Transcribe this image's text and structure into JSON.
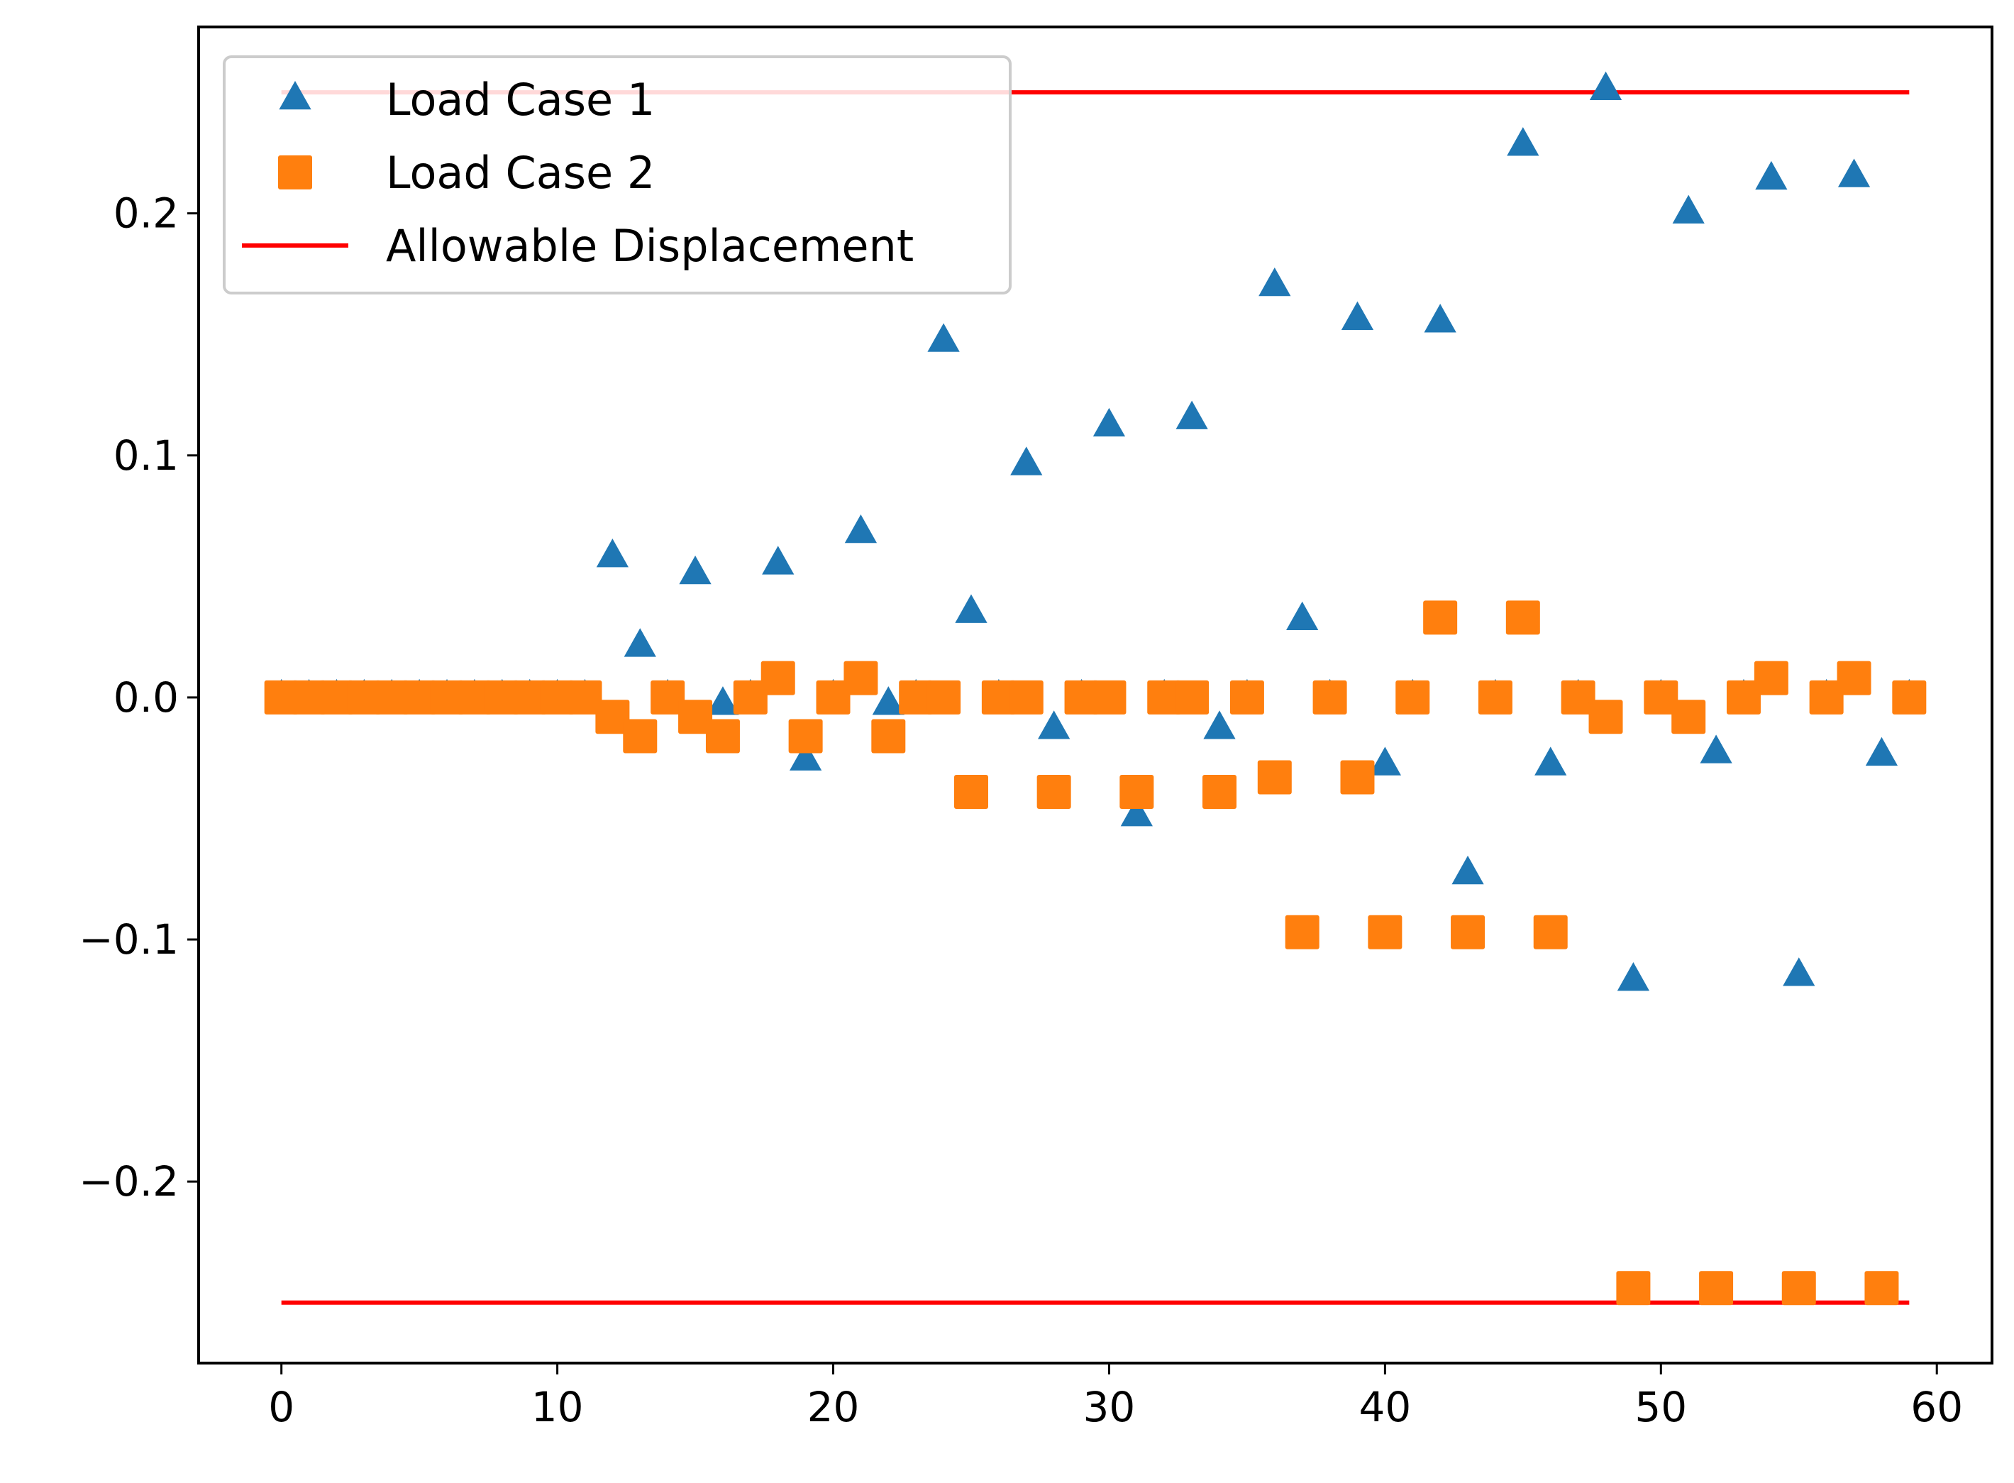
{
  "chart_data": {
    "type": "scatter",
    "title": "",
    "xlabel": "",
    "ylabel": "",
    "xlim": [
      -3,
      62
    ],
    "ylim": [
      -0.275,
      0.277
    ],
    "xticks": [
      0,
      10,
      20,
      30,
      40,
      50,
      60
    ],
    "yticks": [
      -0.2,
      -0.1,
      0.0,
      0.1,
      0.2
    ],
    "xtick_labels": [
      "0",
      "10",
      "20",
      "30",
      "40",
      "50",
      "60"
    ],
    "ytick_labels": [
      "−0.2",
      "−0.1",
      "0.0",
      "0.1",
      "0.2"
    ],
    "legend_position": "top-left",
    "series": [
      {
        "name": "Load Case 1",
        "marker": "triangle",
        "color": "#1f77b4",
        "x": [
          0,
          1,
          2,
          3,
          4,
          5,
          6,
          7,
          8,
          9,
          10,
          11,
          12,
          13,
          14,
          15,
          16,
          17,
          18,
          19,
          20,
          21,
          22,
          23,
          24,
          25,
          26,
          27,
          28,
          29,
          30,
          31,
          32,
          33,
          34,
          35,
          36,
          37,
          38,
          39,
          40,
          41,
          42,
          43,
          44,
          45,
          46,
          47,
          48,
          49,
          50,
          51,
          52,
          53,
          54,
          55,
          56,
          57,
          58,
          59
        ],
        "y": [
          0,
          0,
          0,
          0,
          0,
          0,
          0,
          0,
          0,
          0,
          0,
          0,
          0.058,
          0.021,
          0,
          0.051,
          -0.003,
          0,
          0.055,
          -0.026,
          0,
          0.068,
          -0.003,
          0,
          0.147,
          0.035,
          0,
          0.096,
          -0.013,
          0,
          0.112,
          -0.049,
          0,
          0.115,
          -0.013,
          0,
          0.17,
          0.032,
          0,
          0.156,
          -0.028,
          0,
          0.155,
          -0.073,
          0,
          0.228,
          -0.028,
          0,
          0.251,
          -0.117,
          0,
          0.2,
          -0.023,
          0,
          0.214,
          -0.115,
          0,
          0.215,
          -0.024,
          0
        ]
      },
      {
        "name": "Load Case 2",
        "marker": "square",
        "color": "#ff7f0e",
        "x": [
          0,
          1,
          2,
          3,
          4,
          5,
          6,
          7,
          8,
          9,
          10,
          11,
          12,
          13,
          14,
          15,
          16,
          17,
          18,
          19,
          20,
          21,
          22,
          23,
          24,
          25,
          26,
          27,
          28,
          29,
          30,
          31,
          32,
          33,
          34,
          35,
          36,
          37,
          38,
          39,
          40,
          41,
          42,
          43,
          44,
          45,
          46,
          47,
          48,
          49,
          50,
          51,
          52,
          53,
          54,
          55,
          56,
          57,
          58,
          59
        ],
        "y": [
          0,
          0,
          0,
          0,
          0,
          0,
          0,
          0,
          0,
          0,
          0,
          0,
          -0.008,
          -0.016,
          0,
          -0.008,
          -0.016,
          0,
          0.008,
          -0.016,
          0,
          0.008,
          -0.016,
          0,
          0,
          -0.039,
          0,
          0,
          -0.039,
          0,
          0,
          -0.039,
          0,
          0,
          -0.039,
          0,
          -0.033,
          -0.097,
          0,
          -0.033,
          -0.097,
          0,
          0.033,
          -0.097,
          0,
          0.033,
          -0.097,
          0,
          -0.008,
          -0.244,
          0,
          -0.008,
          -0.244,
          0,
          0.008,
          -0.244,
          0,
          0.008,
          -0.244,
          0
        ]
      },
      {
        "name": "Allowable Displacement",
        "marker": "line",
        "color": "#ff0000",
        "lines": [
          {
            "x": [
              0,
              59
            ],
            "y": [
              0.25,
              0.25
            ]
          },
          {
            "x": [
              0,
              59
            ],
            "y": [
              -0.25,
              -0.25
            ]
          }
        ]
      }
    ]
  }
}
